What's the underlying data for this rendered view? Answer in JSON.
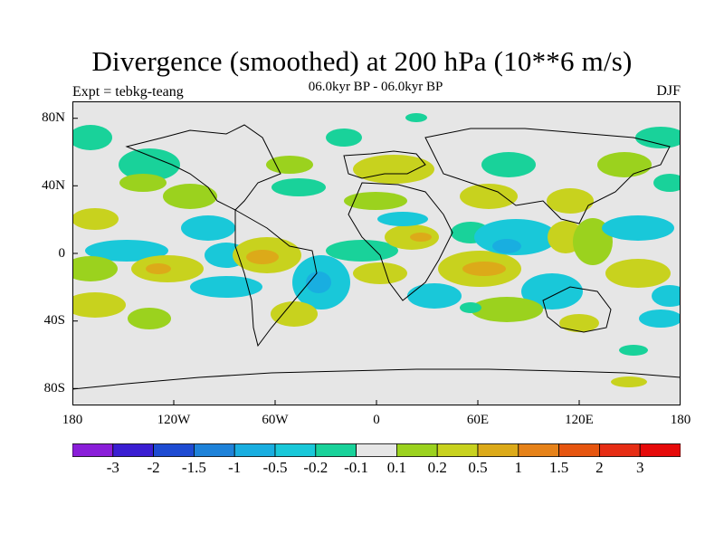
{
  "title": "Divergence (smoothed) at 200 hPa (10**6 m/s)",
  "subtitle": "06.0kyr BP - 06.0kyr BP",
  "expt_label": "Expt = tebkg-teang",
  "season": "DJF",
  "lat_labels": [
    "80N",
    "40N",
    "0",
    "40S",
    "80S"
  ],
  "lon_labels": [
    "180",
    "120W",
    "60W",
    "0",
    "60E",
    "120E",
    "180"
  ],
  "colorbar": {
    "labels": [
      "-3",
      "-2",
      "-1.5",
      "-1",
      "-0.5",
      "-0.2",
      "-0.1",
      "0.1",
      "0.2",
      "0.5",
      "1",
      "1.5",
      "2",
      "3"
    ],
    "colors": [
      "#8a1ed9",
      "#3a1ed2",
      "#1e4bd2",
      "#1e82d9",
      "#19aee0",
      "#19c8d9",
      "#19d29a",
      "#e6e6e6",
      "#9bd21e",
      "#c8d21e",
      "#dcaa19",
      "#e68219",
      "#e6550f",
      "#e62d14",
      "#e60a0a"
    ]
  },
  "map_background": "#e6e6e6",
  "coastline_color": "#000000"
}
